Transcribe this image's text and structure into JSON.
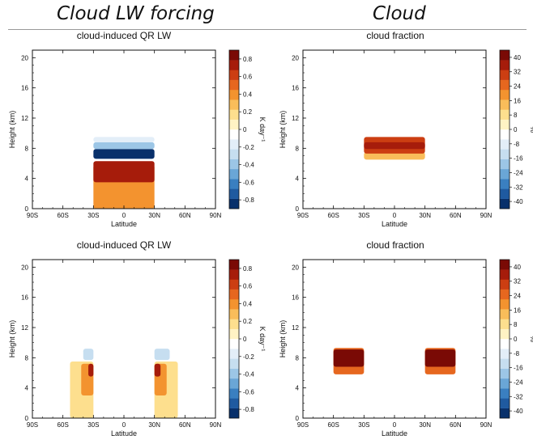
{
  "headers": {
    "left": "Cloud LW forcing",
    "right": "Cloud"
  },
  "palette": [
    "#08306b",
    "#1f5aa0",
    "#3a7fc0",
    "#6aa6d6",
    "#9cc6e6",
    "#c6def0",
    "#e3eef8",
    "#ffffff",
    "#fff3c4",
    "#fddf8e",
    "#f9bd5a",
    "#f3932f",
    "#e6671f",
    "#cc3e12",
    "#a61c0b",
    "#7a0a05"
  ],
  "chart_data": [
    {
      "type": "heatmap",
      "title": "cloud-induced QR LW",
      "xlabel": "Latitude",
      "ylabel": "Height (km)",
      "xlim": [
        -90,
        90
      ],
      "ylim": [
        0,
        21
      ],
      "xticks": [
        -90,
        -60,
        -30,
        0,
        30,
        60,
        90
      ],
      "xtick_labels": [
        "90S",
        "60S",
        "30S",
        "0",
        "30N",
        "60N",
        "90N"
      ],
      "yticks": [
        0,
        4,
        8,
        12,
        16,
        20
      ],
      "colorbar": {
        "label": "K day⁻¹",
        "min": -0.9,
        "max": 0.9,
        "ticks": [
          -0.8,
          -0.6,
          -0.4,
          -0.2,
          0,
          0.2,
          0.4,
          0.6,
          0.8
        ]
      },
      "regions": [
        {
          "lat": [
            -30,
            30
          ],
          "height": [
            0,
            5.8
          ],
          "value": 0.4
        },
        {
          "lat": [
            -30,
            30
          ],
          "height": [
            3.5,
            6.3
          ],
          "value": 0.75
        },
        {
          "lat": [
            -30,
            30
          ],
          "height": [
            6.6,
            7.9
          ],
          "value": -0.85
        },
        {
          "lat": [
            -30,
            30
          ],
          "height": [
            7.9,
            8.8
          ],
          "value": -0.4
        },
        {
          "lat": [
            -30,
            30
          ],
          "height": [
            8.8,
            9.5
          ],
          "value": -0.2
        }
      ]
    },
    {
      "type": "heatmap",
      "title": "cloud fraction",
      "xlabel": "Latitude",
      "ylabel": "Height (km)",
      "xlim": [
        -90,
        90
      ],
      "ylim": [
        0,
        21
      ],
      "xticks": [
        -90,
        -60,
        -30,
        0,
        30,
        60,
        90
      ],
      "xtick_labels": [
        "90S",
        "60S",
        "30S",
        "0",
        "30N",
        "60N",
        "90N"
      ],
      "yticks": [
        0,
        4,
        8,
        12,
        16,
        20
      ],
      "colorbar": {
        "label": "%",
        "min": -44,
        "max": 44,
        "ticks": [
          -40,
          -32,
          -24,
          -16,
          -8,
          0,
          8,
          16,
          24,
          32,
          40
        ]
      },
      "regions": [
        {
          "lat": [
            -30,
            30
          ],
          "height": [
            6.5,
            7.5
          ],
          "value": 16
        },
        {
          "lat": [
            -30,
            30
          ],
          "height": [
            7.3,
            9.5
          ],
          "value": 28
        },
        {
          "lat": [
            -30,
            30
          ],
          "height": [
            7.9,
            8.8
          ],
          "value": 38
        }
      ]
    },
    {
      "type": "heatmap",
      "title": "cloud-induced QR LW",
      "xlabel": "Latitude",
      "ylabel": "Height (km)",
      "xlim": [
        -90,
        90
      ],
      "ylim": [
        0,
        21
      ],
      "xticks": [
        -90,
        -60,
        -30,
        0,
        30,
        60,
        90
      ],
      "xtick_labels": [
        "90S",
        "60S",
        "30S",
        "0",
        "30N",
        "60N",
        "90N"
      ],
      "yticks": [
        0,
        4,
        8,
        12,
        16,
        20
      ],
      "colorbar": {
        "label": "K day⁻¹",
        "min": -0.9,
        "max": 0.9,
        "ticks": [
          -0.8,
          -0.6,
          -0.4,
          -0.2,
          0,
          0.2,
          0.4,
          0.6,
          0.8
        ]
      },
      "regions": [
        {
          "lat": [
            -53,
            -30
          ],
          "height": [
            0,
            7.5
          ],
          "value": 0.2
        },
        {
          "lat": [
            -42,
            -30
          ],
          "height": [
            3,
            7.2
          ],
          "value": 0.35
        },
        {
          "lat": [
            -35,
            -30
          ],
          "height": [
            5.5,
            7.2
          ],
          "value": 0.7
        },
        {
          "lat": [
            -40,
            -30
          ],
          "height": [
            7.7,
            9.2
          ],
          "value": -0.3
        },
        {
          "lat": [
            30,
            53
          ],
          "height": [
            0,
            7.5
          ],
          "value": 0.2
        },
        {
          "lat": [
            30,
            42
          ],
          "height": [
            3,
            7.2
          ],
          "value": 0.35
        },
        {
          "lat": [
            30,
            36
          ],
          "height": [
            5.5,
            7.2
          ],
          "value": 0.7
        },
        {
          "lat": [
            30,
            45
          ],
          "height": [
            7.7,
            9.2
          ],
          "value": -0.3
        }
      ]
    },
    {
      "type": "heatmap",
      "title": "cloud fraction",
      "xlabel": "Latitude",
      "ylabel": "Height (km)",
      "xlim": [
        -90,
        90
      ],
      "ylim": [
        0,
        21
      ],
      "xticks": [
        -90,
        -60,
        -30,
        0,
        30,
        60,
        90
      ],
      "xtick_labels": [
        "90S",
        "60S",
        "30S",
        "0",
        "30N",
        "60N",
        "90N"
      ],
      "yticks": [
        0,
        4,
        8,
        12,
        16,
        20
      ],
      "colorbar": {
        "label": "%",
        "min": -44,
        "max": 44,
        "ticks": [
          -40,
          -32,
          -24,
          -16,
          -8,
          0,
          8,
          16,
          24,
          32,
          40
        ]
      },
      "regions": [
        {
          "lat": [
            -60,
            -30
          ],
          "height": [
            5.8,
            9.3
          ],
          "value": 22
        },
        {
          "lat": [
            -60,
            -30
          ],
          "height": [
            6.8,
            9.1
          ],
          "value": 40
        },
        {
          "lat": [
            30,
            60
          ],
          "height": [
            5.8,
            9.3
          ],
          "value": 22
        },
        {
          "lat": [
            30,
            60
          ],
          "height": [
            6.8,
            9.1
          ],
          "value": 40
        }
      ]
    }
  ]
}
